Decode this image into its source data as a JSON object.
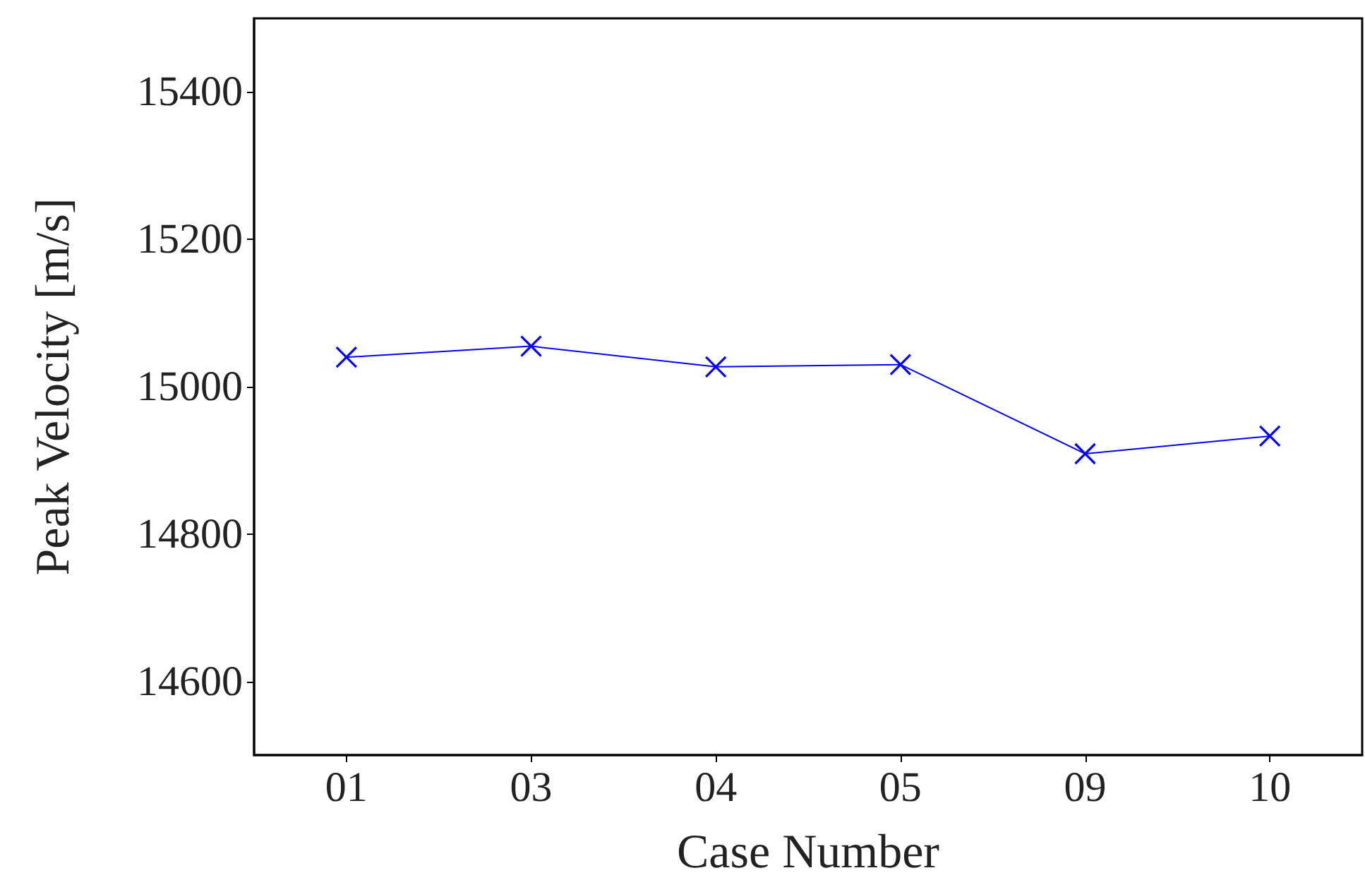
{
  "chart_data": {
    "type": "line",
    "xlabel": "Case Number",
    "ylabel": "Peak Velocity [m/s]",
    "categories": [
      "01",
      "03",
      "04",
      "05",
      "09",
      "10"
    ],
    "series": [
      {
        "color": "#0000ff",
        "values": [
          15040,
          15055,
          15027,
          15030,
          14909,
          14933
        ]
      }
    ],
    "ylim": [
      14500,
      15500
    ],
    "yticks": [
      14600,
      14800,
      15000,
      15200,
      15400
    ],
    "grid": false,
    "marker": "cross",
    "line_style": "solid"
  }
}
